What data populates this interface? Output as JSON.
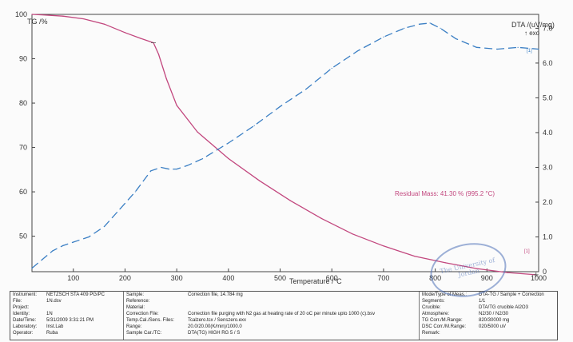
{
  "chart_data": {
    "type": "line",
    "left_axis_label": "TG /%",
    "right_axis_label": "DTA /(uV/mg)",
    "right_axis_sublabel": "↑ exo",
    "xlabel": "Temperature /°C",
    "x_ticks": [
      "100",
      "200",
      "300",
      "400",
      "500",
      "600",
      "700",
      "800",
      "900",
      "1000"
    ],
    "left_ticks": [
      "100",
      "90",
      "80",
      "70",
      "60",
      "50"
    ],
    "right_ticks": [
      "7.0",
      "6.0",
      "5.0",
      "4.0",
      "3.0",
      "2.0",
      "1.0",
      "0"
    ],
    "xlim": [
      20,
      1000
    ],
    "left_ylim": [
      42,
      100
    ],
    "right_ylim": [
      0,
      7.4
    ],
    "series": [
      {
        "axis": "left",
        "color": "#c2477e",
        "style": "solid",
        "x": [
          20,
          40,
          80,
          120,
          160,
          200,
          230,
          255,
          265,
          280,
          300,
          340,
          400,
          460,
          520,
          580,
          640,
          700,
          760,
          820,
          880,
          940,
          995
        ],
        "y": [
          100,
          99.9,
          99.6,
          99.0,
          97.8,
          95.9,
          94.6,
          93.6,
          91.0,
          85.5,
          79.5,
          73.5,
          67.5,
          62.5,
          58.0,
          54.0,
          50.5,
          47.8,
          45.5,
          44.0,
          42.7,
          41.8,
          41.3
        ]
      },
      {
        "axis": "right",
        "color": "#3b7fc4",
        "style": "dashed",
        "x": [
          20,
          40,
          60,
          80,
          100,
          130,
          160,
          190,
          220,
          250,
          270,
          285,
          300,
          320,
          350,
          400,
          450,
          500,
          550,
          600,
          650,
          700,
          740,
          770,
          790,
          810,
          840,
          880,
          920,
          960,
          1000
        ],
        "y": [
          0.1,
          0.35,
          0.6,
          0.75,
          0.85,
          1.0,
          1.3,
          1.8,
          2.3,
          2.9,
          3.0,
          2.95,
          2.95,
          3.05,
          3.25,
          3.7,
          4.2,
          4.75,
          5.25,
          5.85,
          6.35,
          6.75,
          7.0,
          7.12,
          7.15,
          7.0,
          6.7,
          6.45,
          6.4,
          6.45,
          6.4
        ]
      }
    ],
    "annotations": [
      {
        "text": "Residual Mass: 41.30 % (995.2 °C)",
        "color": "#c2477e"
      },
      {
        "text": "[1]",
        "color": "#3b7fc4"
      },
      {
        "text": "[1]",
        "color": "#c2477e"
      }
    ]
  },
  "info": {
    "col1": [
      {
        "k": "Instrument:",
        "v": "NETZSCH STA 409 PG/PC"
      },
      {
        "k": "File:",
        "v": "1N.dsv"
      },
      {
        "k": "Project:",
        "v": ""
      },
      {
        "k": "Identity:",
        "v": "1N"
      },
      {
        "k": "Date/Time:",
        "v": "5/31/2009 3:31:21 PM"
      },
      {
        "k": "Laboratory:",
        "v": "Inst.Lab"
      },
      {
        "k": "Operator:",
        "v": "Ruba"
      }
    ],
    "col2": [
      {
        "k": "Sample:",
        "v": "Correction file, 14.784 mg"
      },
      {
        "k": "Reference:",
        "v": ""
      },
      {
        "k": "Material:",
        "v": ""
      },
      {
        "k": "Correction File:",
        "v": "Correction file purging with N2 gas at heating rate of 20 oC per minute upto 1000 (c).bsv"
      },
      {
        "k": "Temp.Cal./Sens. Files:",
        "v": "Tcalzero.tcx / Senszero.exx"
      },
      {
        "k": "Range:",
        "v": "20.0/20.00(K/min)/1000.0"
      },
      {
        "k": "Sample Car./TC:",
        "v": "DTA(TG) HIGH RG 5 / S"
      }
    ],
    "col3": [
      {
        "k": "Mode/Type of Meas.:",
        "v": "DTA-TG / Sample + Correction"
      },
      {
        "k": "Segments:",
        "v": "1/1"
      },
      {
        "k": "Crucible:",
        "v": "DTA/TG crucible Al2O3"
      },
      {
        "k": "Atmosphere:",
        "v": "N2/30 / N2/30"
      },
      {
        "k": "TG Corr./M.Range:",
        "v": "820/30000 mg"
      },
      {
        "k": "DSC Corr./M.Range:",
        "v": "020/5000 uV"
      },
      {
        "k": "Remark:",
        "v": ""
      }
    ]
  },
  "stamp": {
    "text": "The University of Jordan"
  }
}
